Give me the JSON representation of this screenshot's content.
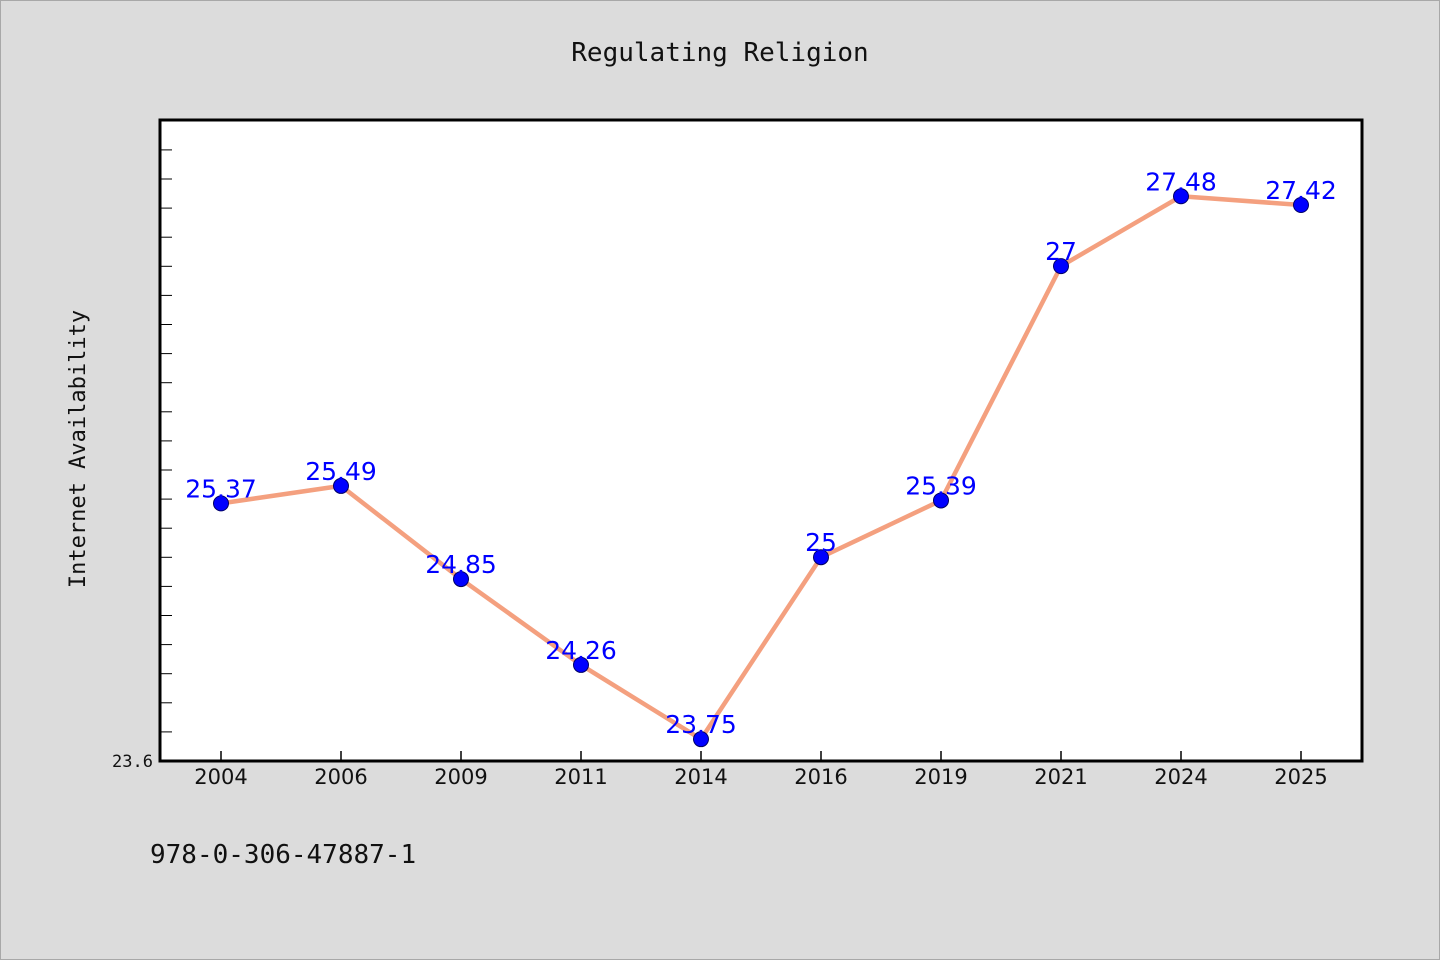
{
  "chart_data": {
    "type": "line",
    "title": "Regulating Religion",
    "xlabel": "",
    "ylabel": "Internet Availability",
    "categories": [
      "2004",
      "2006",
      "2009",
      "2011",
      "2014",
      "2016",
      "2019",
      "2021",
      "2024",
      "2025"
    ],
    "series": [
      {
        "values": [
          25.37,
          25.49,
          24.85,
          24.26,
          23.75,
          25,
          25.39,
          27,
          27.48,
          27.42
        ],
        "data_labels": [
          "25.37",
          "25.49",
          "24.85",
          "24.26",
          "23.75",
          "25",
          "25.39",
          "27",
          "27.48",
          "27.42"
        ],
        "line_color": "#f4a07f",
        "marker_color": "#0000ff"
      }
    ],
    "ylim": [
      23.6,
      28
    ],
    "ytick_labels": [
      "23.6"
    ],
    "grid": false,
    "legend": "none"
  },
  "footer": {
    "code": "978-0-306-47887-1"
  },
  "colors": {
    "background": "#dcdcdc",
    "plot_area": "#ffffff",
    "axis": "#000000",
    "label_text": "#0000ff"
  }
}
